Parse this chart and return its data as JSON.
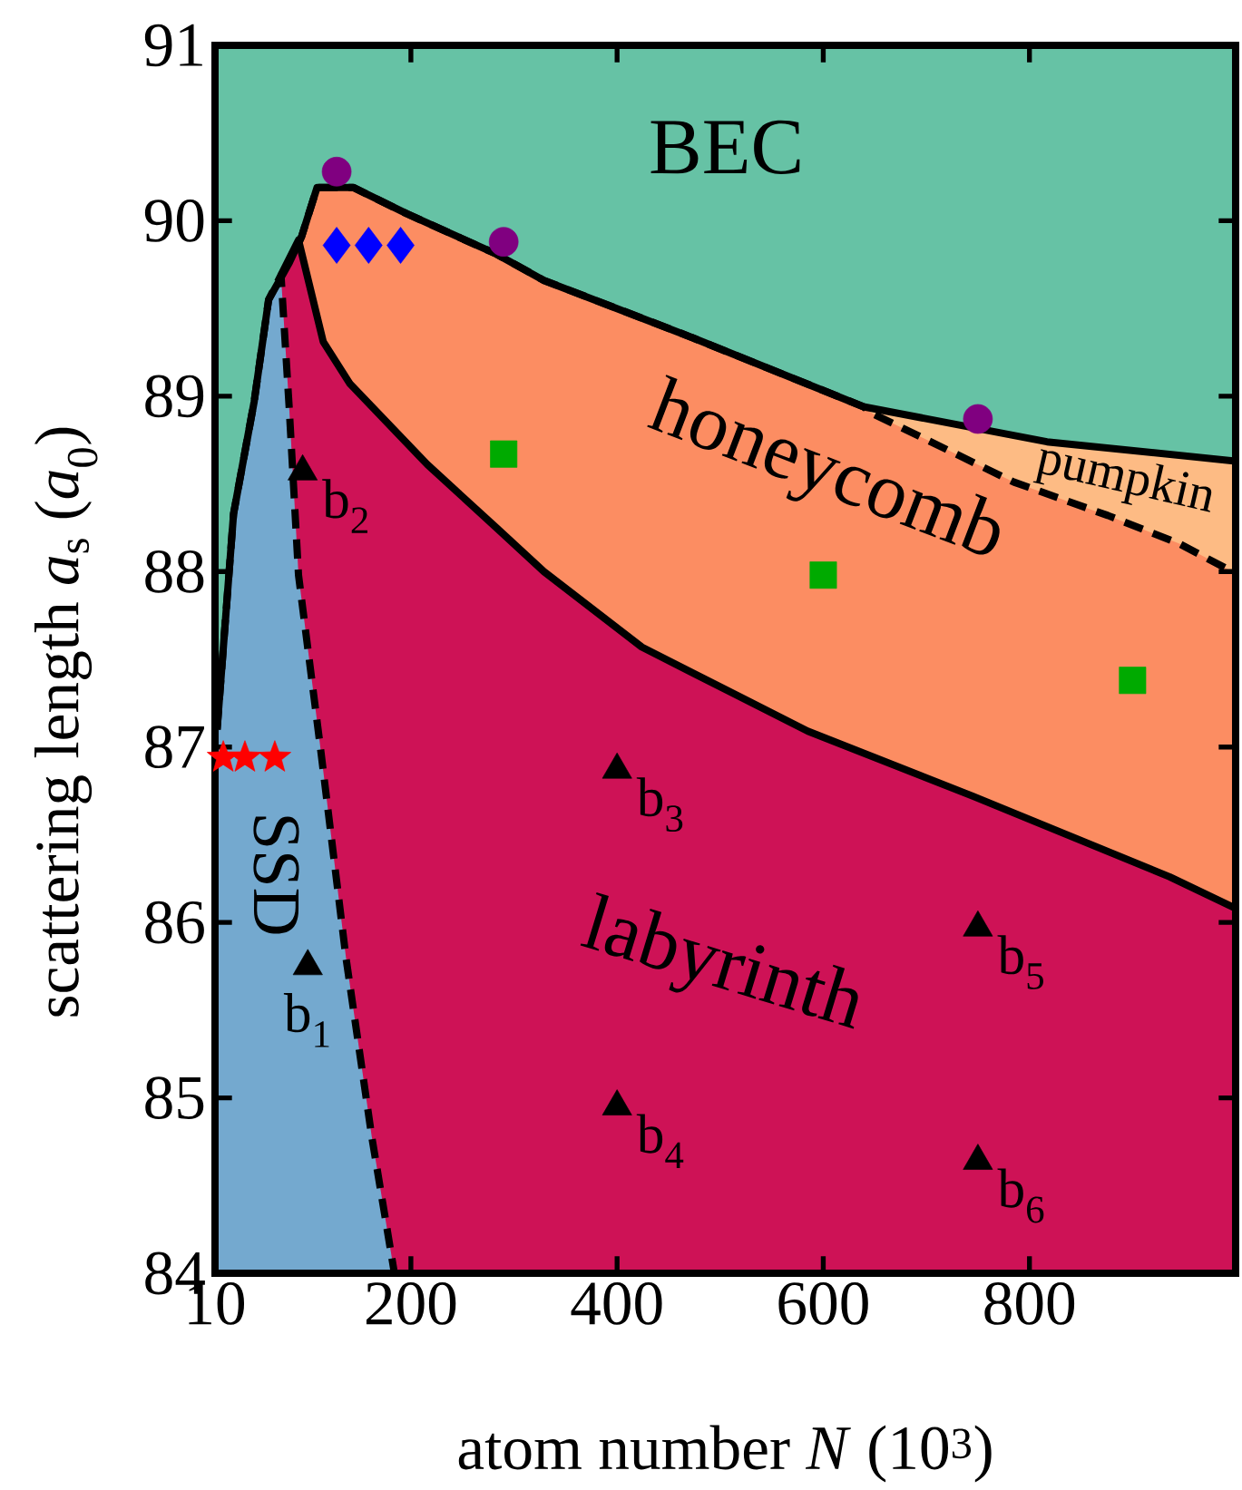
{
  "chart_data": {
    "type": "area",
    "xlabel": "atom number *N* (10$^{3}$)",
    "ylabel": "scattering length *a*$_{s}$ (*a*$_{0}$)",
    "xlim": [
      10,
      1000
    ],
    "ylim": [
      84,
      91
    ],
    "xticks": [
      10,
      200,
      400,
      600,
      800
    ],
    "yticks": [
      84,
      85,
      86,
      87,
      88,
      89,
      90,
      91
    ],
    "grid": false,
    "series": [
      {
        "color": "#66c2a5",
        "x": [
          10,
          1000
        ],
        "values": [
          91,
          91
        ]
      },
      {
        "color": "#fdbb84",
        "line_style": "solid",
        "x": [
          12,
          28,
          48,
          62,
          82,
          94,
          109,
          129,
          144,
          196,
          283,
          329,
          466,
          639,
          817,
          1000
        ],
        "values": [
          87.1,
          88.33,
          88.97,
          89.55,
          89.76,
          89.91,
          90.19,
          null,
          90.19,
          90.04,
          89.81,
          89.66,
          89.35,
          88.94,
          88.74,
          88.63
        ]
      },
      {
        "color": "#fc8d62",
        "line_style": "dashed",
        "x": [
          91,
          94,
          109,
          129,
          144,
          196,
          283,
          329,
          466,
          639,
          648,
          785,
          876,
          945,
          1000
        ],
        "values": [
          89.87,
          89.91,
          90.19,
          null,
          90.19,
          90.04,
          89.81,
          89.66,
          89.35,
          88.94,
          88.9,
          88.51,
          88.32,
          88.16,
          87.99
        ]
      },
      {
        "color": "#ce1256",
        "line_style": "solid",
        "x": [
          74,
          91,
          115,
          141,
          216,
          283,
          329,
          424,
          585,
          745,
          936,
          1000
        ],
        "values": [
          89.69,
          89.89,
          89.31,
          89.07,
          88.61,
          88.25,
          88.0,
          87.57,
          87.09,
          86.72,
          86.26,
          86.08
        ]
      },
      {
        "color": "#74a9cf",
        "line_style": "dashed",
        "x": [
          12,
          28,
          48,
          62,
          74,
          82,
          91,
          113,
          137,
          162,
          184
        ],
        "values": [
          87.1,
          88.33,
          88.97,
          89.55,
          89.69,
          88.93,
          87.98,
          86.96,
          85.8,
          84.78,
          84.0
        ]
      },
      {
        "type": "scatter",
        "marker": "circle",
        "color": "#800080",
        "x": [
          128,
          290,
          750
        ],
        "values": [
          90.28,
          89.88,
          88.87
        ]
      },
      {
        "type": "scatter",
        "marker": "diamond",
        "color": "#0000ff",
        "x": [
          128,
          159,
          190
        ],
        "values": [
          89.86,
          89.86,
          89.86
        ]
      },
      {
        "type": "scatter",
        "marker": "star",
        "color": "#ff0000",
        "x": [
          18,
          39,
          68
        ],
        "values": [
          86.94,
          86.94,
          86.94
        ]
      },
      {
        "type": "scatter",
        "marker": "square",
        "color": "#00aa00",
        "x": [
          290,
          600,
          900
        ],
        "values": [
          88.67,
          87.98,
          87.38
        ]
      },
      {
        "type": "scatter",
        "marker": "triangle",
        "color": "#000000",
        "x": [
          100,
          95,
          400,
          400,
          750,
          750
        ],
        "values": [
          85.75,
          88.57,
          86.87,
          84.95,
          85.97,
          84.64
        ]
      }
    ],
    "annotations": [
      {
        "text": "b$_{1}$",
        "x": 100,
        "y": 85.75
      },
      {
        "text": "b$_{2}$",
        "x": 95,
        "y": 88.57
      },
      {
        "text": "b$_{3}$",
        "x": 400,
        "y": 86.87
      },
      {
        "text": "b$_{4}$",
        "x": 400,
        "y": 84.95
      },
      {
        "text": "b$_{5}$",
        "x": 750,
        "y": 85.97
      },
      {
        "text": "b$_{6}$",
        "x": 750,
        "y": 84.64
      },
      "BEC",
      "honeycomb",
      "pumpkin",
      "labyrinth",
      "SSD"
    ]
  }
}
